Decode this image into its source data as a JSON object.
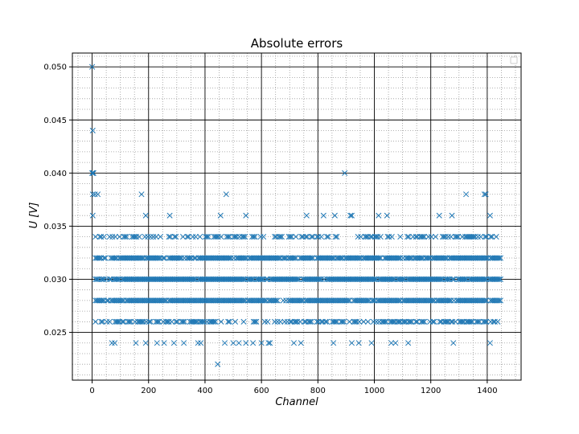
{
  "chart_data": {
    "type": "scatter",
    "title": "Absolute errors",
    "xlabel": "Channel",
    "ylabel": "U [V]",
    "xlim": [
      -70,
      1520
    ],
    "ylim": [
      0.0205,
      0.0513
    ],
    "x_ticks": [
      0,
      200,
      400,
      600,
      800,
      1000,
      1200,
      1400
    ],
    "y_ticks": [
      0.025,
      0.03,
      0.035,
      0.04,
      0.045,
      0.05
    ],
    "x_tick_labels": [
      "0",
      "200",
      "400",
      "600",
      "800",
      "1000",
      "1200",
      "1400"
    ],
    "y_tick_labels": [
      "0.025",
      "0.030",
      "0.035",
      "0.040",
      "0.045",
      "0.050"
    ],
    "grid": "major black, minor dotted grey",
    "legend": "top-right (empty)",
    "marker": "x",
    "color": "#1f77b4",
    "channel_range": [
      0,
      1450
    ],
    "levels": [
      {
        "y": 0.03,
        "density": "dense"
      },
      {
        "y": 0.032,
        "density": "dense"
      },
      {
        "y": 0.028,
        "density": "dense"
      },
      {
        "y": 0.026,
        "density": "medium"
      },
      {
        "y": 0.034,
        "density": "medium"
      },
      {
        "y": 0.024,
        "density": "sparse"
      },
      {
        "y": 0.036,
        "density": "sparse"
      }
    ],
    "points": [
      {
        "x": 0,
        "y": 0.05
      },
      {
        "x": 2,
        "y": 0.044
      },
      {
        "x": 0,
        "y": 0.04
      },
      {
        "x": 3,
        "y": 0.04
      },
      {
        "x": 5,
        "y": 0.04
      },
      {
        "x": 895,
        "y": 0.04
      },
      {
        "x": 2,
        "y": 0.038
      },
      {
        "x": 10,
        "y": 0.038
      },
      {
        "x": 20,
        "y": 0.038
      },
      {
        "x": 175,
        "y": 0.038
      },
      {
        "x": 475,
        "y": 0.038
      },
      {
        "x": 1325,
        "y": 0.038
      },
      {
        "x": 1390,
        "y": 0.038
      },
      {
        "x": 1395,
        "y": 0.038
      },
      {
        "x": 2,
        "y": 0.036
      },
      {
        "x": 190,
        "y": 0.036
      },
      {
        "x": 275,
        "y": 0.036
      },
      {
        "x": 455,
        "y": 0.036
      },
      {
        "x": 545,
        "y": 0.036
      },
      {
        "x": 760,
        "y": 0.036
      },
      {
        "x": 820,
        "y": 0.036
      },
      {
        "x": 860,
        "y": 0.036
      },
      {
        "x": 915,
        "y": 0.036
      },
      {
        "x": 920,
        "y": 0.036
      },
      {
        "x": 1015,
        "y": 0.036
      },
      {
        "x": 1045,
        "y": 0.036
      },
      {
        "x": 1230,
        "y": 0.036
      },
      {
        "x": 1275,
        "y": 0.036
      },
      {
        "x": 1410,
        "y": 0.036
      },
      {
        "x": 445,
        "y": 0.022
      },
      {
        "x": 70,
        "y": 0.024
      },
      {
        "x": 80,
        "y": 0.024
      },
      {
        "x": 155,
        "y": 0.024
      },
      {
        "x": 190,
        "y": 0.024
      },
      {
        "x": 230,
        "y": 0.024
      },
      {
        "x": 255,
        "y": 0.024
      },
      {
        "x": 290,
        "y": 0.024
      },
      {
        "x": 325,
        "y": 0.024
      },
      {
        "x": 375,
        "y": 0.024
      },
      {
        "x": 385,
        "y": 0.024
      },
      {
        "x": 470,
        "y": 0.024
      },
      {
        "x": 500,
        "y": 0.024
      },
      {
        "x": 520,
        "y": 0.024
      },
      {
        "x": 545,
        "y": 0.024
      },
      {
        "x": 570,
        "y": 0.024
      },
      {
        "x": 600,
        "y": 0.024
      },
      {
        "x": 625,
        "y": 0.024
      },
      {
        "x": 630,
        "y": 0.024
      },
      {
        "x": 715,
        "y": 0.024
      },
      {
        "x": 740,
        "y": 0.024
      },
      {
        "x": 855,
        "y": 0.024
      },
      {
        "x": 920,
        "y": 0.024
      },
      {
        "x": 945,
        "y": 0.024
      },
      {
        "x": 990,
        "y": 0.024
      },
      {
        "x": 1060,
        "y": 0.024
      },
      {
        "x": 1075,
        "y": 0.024
      },
      {
        "x": 1120,
        "y": 0.024
      },
      {
        "x": 1280,
        "y": 0.024
      },
      {
        "x": 1410,
        "y": 0.024
      }
    ]
  }
}
